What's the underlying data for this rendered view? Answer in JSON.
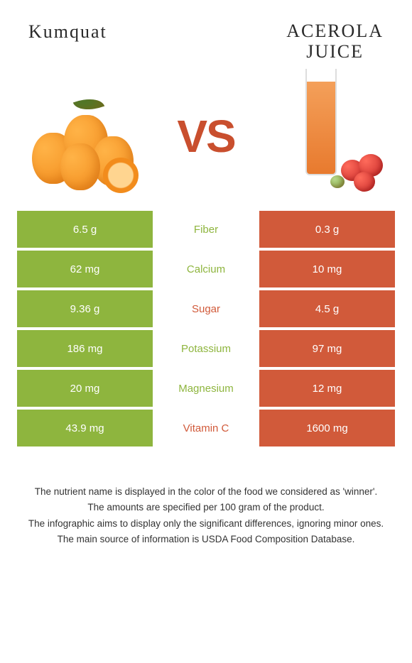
{
  "header": {
    "left_title": "Kumquat",
    "right_title_line1": "ACEROLA",
    "right_title_line2": "JUICE",
    "vs": "VS"
  },
  "colors": {
    "left_bar": "#8eb53e",
    "right_bar": "#d15a3a",
    "winner_left_text": "#8eb53e",
    "winner_right_text": "#d15a3a"
  },
  "rows": [
    {
      "left": "6.5 g",
      "label": "Fiber",
      "right": "0.3 g",
      "winner": "left"
    },
    {
      "left": "62 mg",
      "label": "Calcium",
      "right": "10 mg",
      "winner": "left"
    },
    {
      "left": "9.36 g",
      "label": "Sugar",
      "right": "4.5 g",
      "winner": "right"
    },
    {
      "left": "186 mg",
      "label": "Potassium",
      "right": "97 mg",
      "winner": "left"
    },
    {
      "left": "20 mg",
      "label": "Magnesium",
      "right": "12 mg",
      "winner": "left"
    },
    {
      "left": "43.9 mg",
      "label": "Vitamin C",
      "right": "1600 mg",
      "winner": "right"
    }
  ],
  "footer": {
    "line1": "The nutrient name is displayed in the color of the food we considered as 'winner'.",
    "line2": "The amounts are specified per 100 gram of the product.",
    "line3": "The infographic aims to display only the significant differences, ignoring minor ones.",
    "line4": "The main source of information is USDA Food Composition Database."
  }
}
